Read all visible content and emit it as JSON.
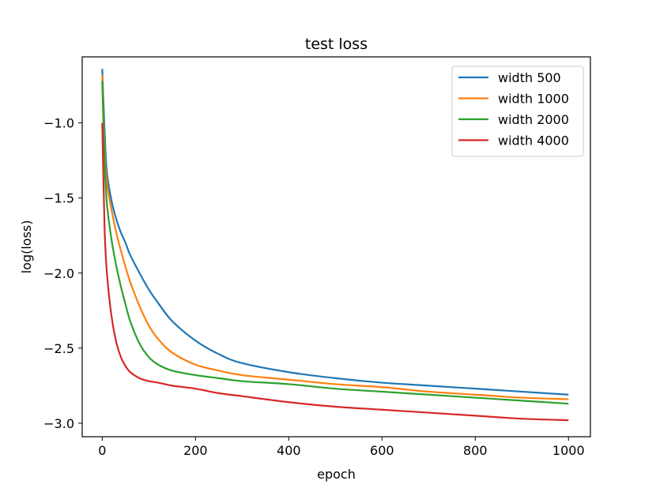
{
  "chart_data": {
    "type": "line",
    "title": "test loss",
    "xlabel": "epoch",
    "ylabel": "log(loss)",
    "xlim": [
      -43,
      1047
    ],
    "ylim": [
      -3.09,
      -0.56
    ],
    "xticks": [
      0,
      200,
      400,
      600,
      800,
      1000
    ],
    "xtick_labels": [
      "0",
      "200",
      "400",
      "600",
      "800",
      "1000"
    ],
    "yticks": [
      -1.0,
      -1.5,
      -2.0,
      -2.5,
      -3.0
    ],
    "ytick_labels": [
      "−1.0",
      "−1.5",
      "−2.0",
      "−2.5",
      "−3.0"
    ],
    "grid": false,
    "legend_position": "top-right",
    "x": [
      0,
      5,
      10,
      20,
      30,
      40,
      50,
      60,
      80,
      100,
      120,
      150,
      200,
      250,
      300,
      400,
      500,
      600,
      700,
      800,
      900,
      1000
    ],
    "series": [
      {
        "name": "width 500",
        "color": "#1f77b4",
        "values": [
          -0.64,
          -1.05,
          -1.33,
          -1.52,
          -1.64,
          -1.73,
          -1.8,
          -1.88,
          -2.0,
          -2.11,
          -2.2,
          -2.32,
          -2.45,
          -2.54,
          -2.6,
          -2.66,
          -2.7,
          -2.73,
          -2.75,
          -2.77,
          -2.79,
          -2.81
        ]
      },
      {
        "name": "width 1000",
        "color": "#ff7f0e",
        "values": [
          -0.68,
          -1.18,
          -1.4,
          -1.58,
          -1.73,
          -1.85,
          -1.96,
          -2.06,
          -2.22,
          -2.35,
          -2.44,
          -2.53,
          -2.61,
          -2.65,
          -2.68,
          -2.71,
          -2.74,
          -2.76,
          -2.79,
          -2.81,
          -2.83,
          -2.84
        ]
      },
      {
        "name": "width 2000",
        "color": "#2ca02c",
        "values": [
          -0.72,
          -1.26,
          -1.54,
          -1.78,
          -1.95,
          -2.09,
          -2.21,
          -2.32,
          -2.47,
          -2.56,
          -2.61,
          -2.65,
          -2.68,
          -2.7,
          -2.72,
          -2.74,
          -2.77,
          -2.79,
          -2.81,
          -2.83,
          -2.85,
          -2.87
        ]
      },
      {
        "name": "width 4000",
        "color": "#d62728",
        "values": [
          -1.0,
          -1.7,
          -2.0,
          -2.29,
          -2.46,
          -2.56,
          -2.62,
          -2.66,
          -2.7,
          -2.72,
          -2.73,
          -2.75,
          -2.77,
          -2.8,
          -2.82,
          -2.86,
          -2.89,
          -2.91,
          -2.93,
          -2.95,
          -2.97,
          -2.98
        ]
      }
    ]
  }
}
